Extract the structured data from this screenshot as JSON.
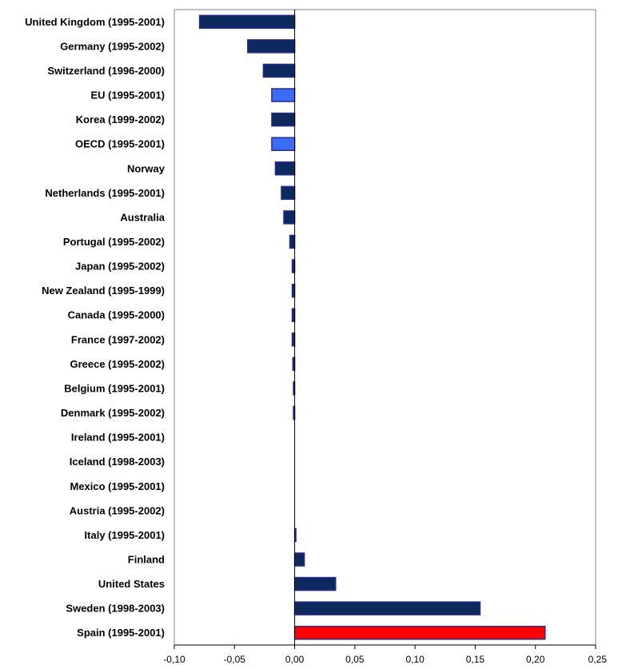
{
  "chart_data": {
    "type": "bar",
    "orientation": "horizontal",
    "categories": [
      "United Kingdom (1995-2001)",
      "Germany (1995-2002)",
      "Switzerland (1996-2000)",
      "EU (1995-2001)",
      "Korea (1999-2002)",
      "OECD (1995-2001)",
      "Norway",
      "Netherlands (1995-2001)",
      "Australia",
      "Portugal (1995-2002)",
      "Japan (1995-2002)",
      "New Zealand (1995-1999)",
      "Canada (1995-2000)",
      "France (1997-2002)",
      "Greece (1995-2002)",
      "Belgium (1995-2001)",
      "Denmark (1995-2002)",
      "Ireland (1995-2001)",
      "Iceland (1998-2003)",
      "Mexico (1995-2001)",
      "Austria (1995-2002)",
      "Italy (1995-2001)",
      "Finland",
      "United States",
      "Sweden (1998-2003)",
      "Spain (1995-2001)"
    ],
    "values": [
      -0.079,
      -0.039,
      -0.026,
      -0.019,
      -0.019,
      -0.019,
      -0.016,
      -0.011,
      -0.009,
      -0.004,
      -0.002,
      -0.002,
      -0.002,
      -0.002,
      -0.0015,
      -0.001,
      -0.001,
      0,
      0,
      0,
      0,
      0.001,
      0.008,
      0.034,
      0.154,
      0.208
    ],
    "bar_colors": [
      "#0d2a5e",
      "#0d2a5e",
      "#0d2a5e",
      "#3a6cf5",
      "#0d2a5e",
      "#3a6cf5",
      "#0d2a5e",
      "#0d2a5e",
      "#0d2a5e",
      "#0d2a5e",
      "#0d2a5e",
      "#0d2a5e",
      "#0d2a5e",
      "#0d2a5e",
      "#0d2a5e",
      "#0d2a5e",
      "#0d2a5e",
      "#0d2a5e",
      "#0d2a5e",
      "#0d2a5e",
      "#0d2a5e",
      "#0d2a5e",
      "#0d2a5e",
      "#0d2a5e",
      "#0d2a5e",
      "#ff0000"
    ],
    "bar_stroke": "#2a2a8a",
    "xlim": [
      -0.1,
      0.25
    ],
    "xticks": [
      -0.1,
      -0.05,
      0,
      0.05,
      0.1,
      0.15,
      0.2,
      0.25
    ],
    "xtick_labels": [
      "-0,10",
      "-0,05",
      "0,00",
      "0,05",
      "0,10",
      "0,15",
      "0,20",
      "0,25"
    ],
    "title": "",
    "xlabel": "",
    "ylabel": "",
    "grid": false,
    "legend": "none"
  }
}
